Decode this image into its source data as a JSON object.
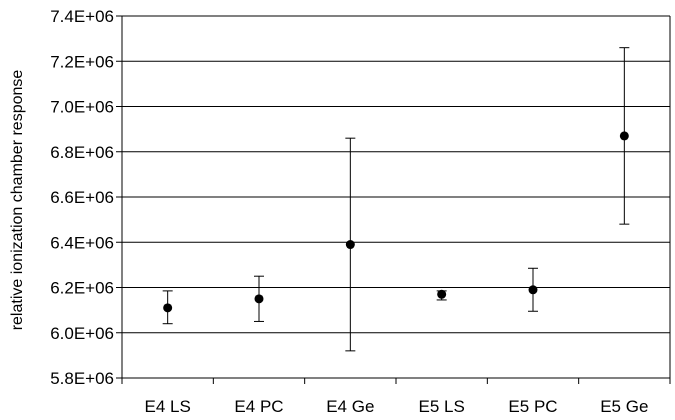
{
  "chart_data": {
    "type": "scatter",
    "title": "",
    "xlabel": "",
    "ylabel": "relative ionization chamber response",
    "categories": [
      "E4 LS",
      "E4 PC",
      "E4 Ge",
      "E5 LS",
      "E5 PC",
      "E5 Ge"
    ],
    "series": [
      {
        "values": [
          6110000,
          6150000,
          6390000,
          6170000,
          6190000,
          6870000
        ],
        "error_low": [
          6040000,
          6050000,
          5920000,
          6145000,
          6095000,
          6480000
        ],
        "error_high": [
          6185000,
          6250000,
          6860000,
          6185000,
          6285000,
          7260000
        ]
      }
    ],
    "ylim": [
      5800000,
      7400000
    ],
    "yticks": [
      5800000,
      6000000,
      6200000,
      6400000,
      6600000,
      6800000,
      7000000,
      7200000,
      7400000
    ],
    "ytick_labels": [
      "5.8E+06",
      "6.0E+06",
      "6.2E+06",
      "6.4E+06",
      "6.6E+06",
      "6.8E+06",
      "7.0E+06",
      "7.2E+06",
      "7.4E+06"
    ],
    "grid": true,
    "colors": {
      "marker": "#000000",
      "grid": "#000000",
      "axis": "#000000"
    }
  }
}
